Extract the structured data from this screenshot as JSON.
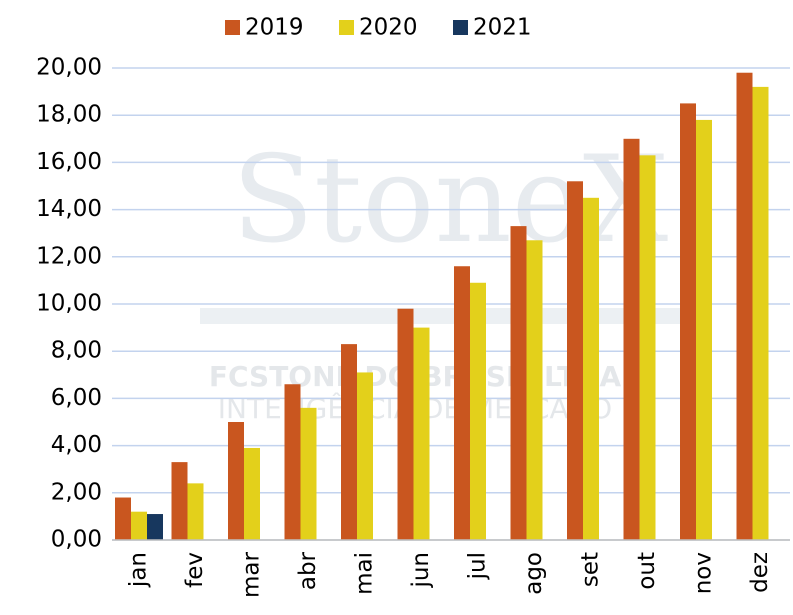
{
  "chart_data": {
    "type": "bar",
    "watermark": [
      "StoneX",
      "FCSTONE DO BRASIL LTDA",
      "INTELIGÊNCIA DE MERCADO"
    ],
    "categories": [
      "jan",
      "fev",
      "mar",
      "abr",
      "mai",
      "jun",
      "jul",
      "ago",
      "set",
      "out",
      "nov",
      "dez"
    ],
    "series": [
      {
        "name": "2019",
        "color": "#c9561f",
        "values": [
          1.8,
          3.3,
          5.0,
          6.6,
          8.3,
          9.8,
          11.6,
          13.3,
          15.2,
          17.0,
          18.5,
          19.8
        ]
      },
      {
        "name": "2020",
        "color": "#e3d01b",
        "values": [
          1.2,
          2.4,
          3.9,
          5.6,
          7.1,
          9.0,
          10.9,
          12.7,
          14.5,
          16.3,
          17.8,
          19.2
        ]
      },
      {
        "name": "2021",
        "color": "#17375e",
        "values": [
          1.1,
          null,
          null,
          null,
          null,
          null,
          null,
          null,
          null,
          null,
          null,
          null
        ]
      }
    ],
    "ylim": [
      0,
      20
    ],
    "yticks": [
      {
        "value": 0,
        "label": "0,00"
      },
      {
        "value": 2,
        "label": "2,00"
      },
      {
        "value": 4,
        "label": "4,00"
      },
      {
        "value": 6,
        "label": "6,00"
      },
      {
        "value": 8,
        "label": "8,00"
      },
      {
        "value": 10,
        "label": "10,00"
      },
      {
        "value": 12,
        "label": "12,00"
      },
      {
        "value": 14,
        "label": "14,00"
      },
      {
        "value": 16,
        "label": "16,00"
      },
      {
        "value": 18,
        "label": "18,00"
      },
      {
        "value": 20,
        "label": "20,00"
      }
    ],
    "grid": true,
    "legend": "top"
  }
}
